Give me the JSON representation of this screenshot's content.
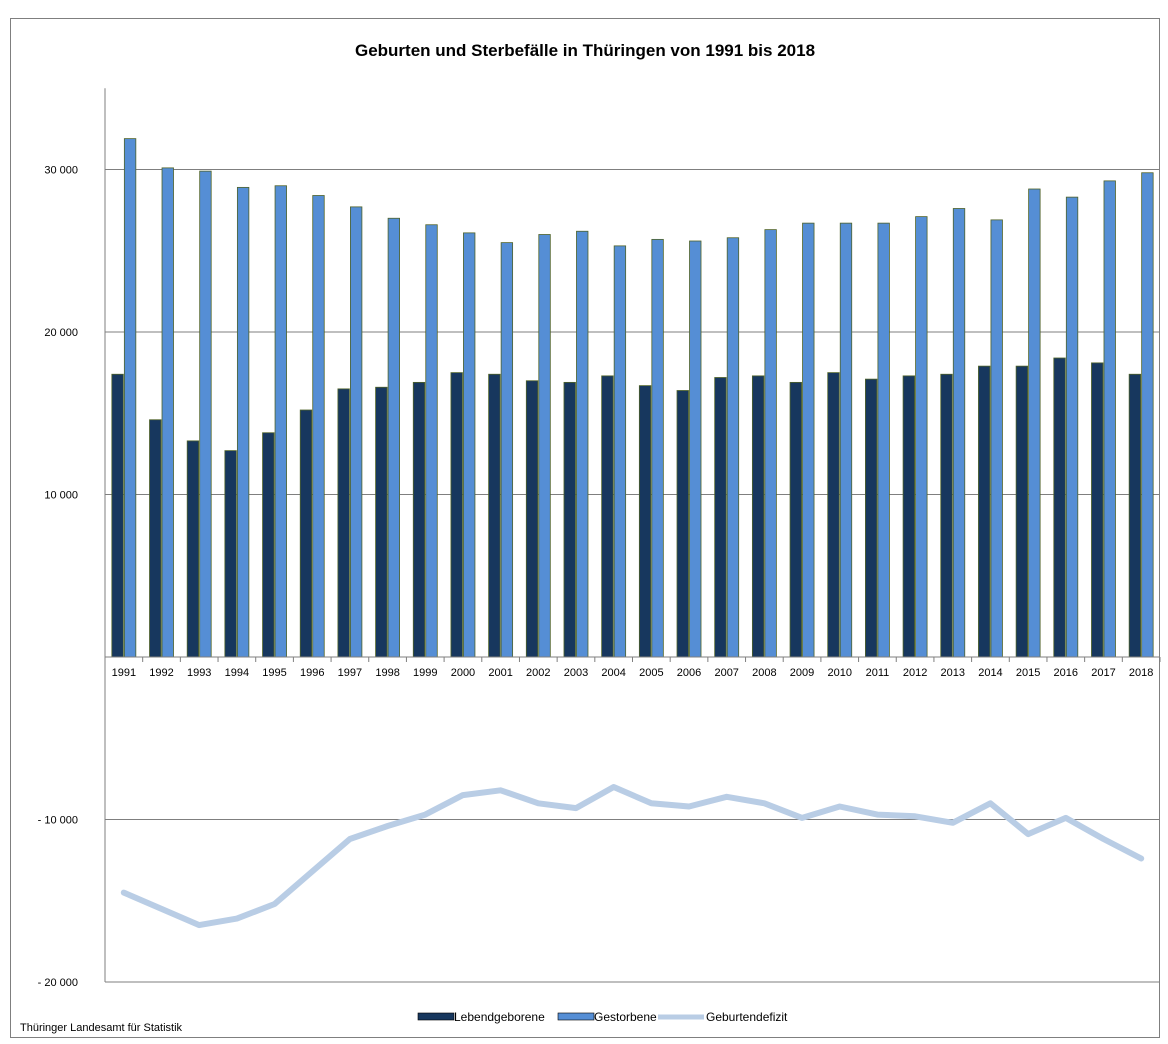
{
  "chart_data": {
    "type": "bar",
    "title": "Geburten und Sterbefälle in Thüringen von 1991 bis 2018",
    "categories": [
      "1991",
      "1992",
      "1993",
      "1994",
      "1995",
      "1996",
      "1997",
      "1998",
      "1999",
      "2000",
      "2001",
      "2002",
      "2003",
      "2004",
      "2005",
      "2006",
      "2007",
      "2008",
      "2009",
      "2010",
      "2011",
      "2012",
      "2013",
      "2014",
      "2015",
      "2016",
      "2017",
      "2018"
    ],
    "series": [
      {
        "name": "Lebendgeborene",
        "type": "bar",
        "color": "#17375e",
        "values": [
          17400,
          14600,
          13300,
          12700,
          13800,
          15200,
          16500,
          16600,
          16900,
          17500,
          17400,
          17000,
          16900,
          17300,
          16700,
          16400,
          17200,
          17300,
          16900,
          17500,
          17100,
          17300,
          17400,
          17900,
          17900,
          18400,
          18100,
          17400
        ]
      },
      {
        "name": "Gestorbene",
        "type": "bar",
        "color": "#558ed5",
        "values": [
          31900,
          30100,
          29900,
          28900,
          29000,
          28400,
          27700,
          27000,
          26600,
          26100,
          25500,
          26000,
          26200,
          25300,
          25700,
          25600,
          25800,
          26300,
          26700,
          26700,
          26700,
          27100,
          27600,
          26900,
          28800,
          28300,
          29300,
          29800
        ]
      },
      {
        "name": "Geburtendefizit",
        "type": "line",
        "color": "#b9cde5",
        "values": [
          -14500,
          -15500,
          -16500,
          -16100,
          -15200,
          -13200,
          -11200,
          -10400,
          -9700,
          -8500,
          -8200,
          -9000,
          -9300,
          -8000,
          -9000,
          -9200,
          -8600,
          -9000,
          -9900,
          -9200,
          -9700,
          -9800,
          -10200,
          -9000,
          -10900,
          -9900,
          -11200,
          -12400
        ]
      }
    ],
    "ylim": [
      -20000,
      35000
    ],
    "yticks": [
      {
        "value": 30000,
        "label": "30 000"
      },
      {
        "value": 20000,
        "label": "20 000"
      },
      {
        "value": 10000,
        "label": "10 000"
      },
      {
        "value": -10000,
        "label": "- 10 000"
      },
      {
        "value": -20000,
        "label": "- 20 000"
      }
    ],
    "grid": true,
    "legend_position": "bottom-center",
    "source": "Thüringer Landesamt für Statistik"
  }
}
